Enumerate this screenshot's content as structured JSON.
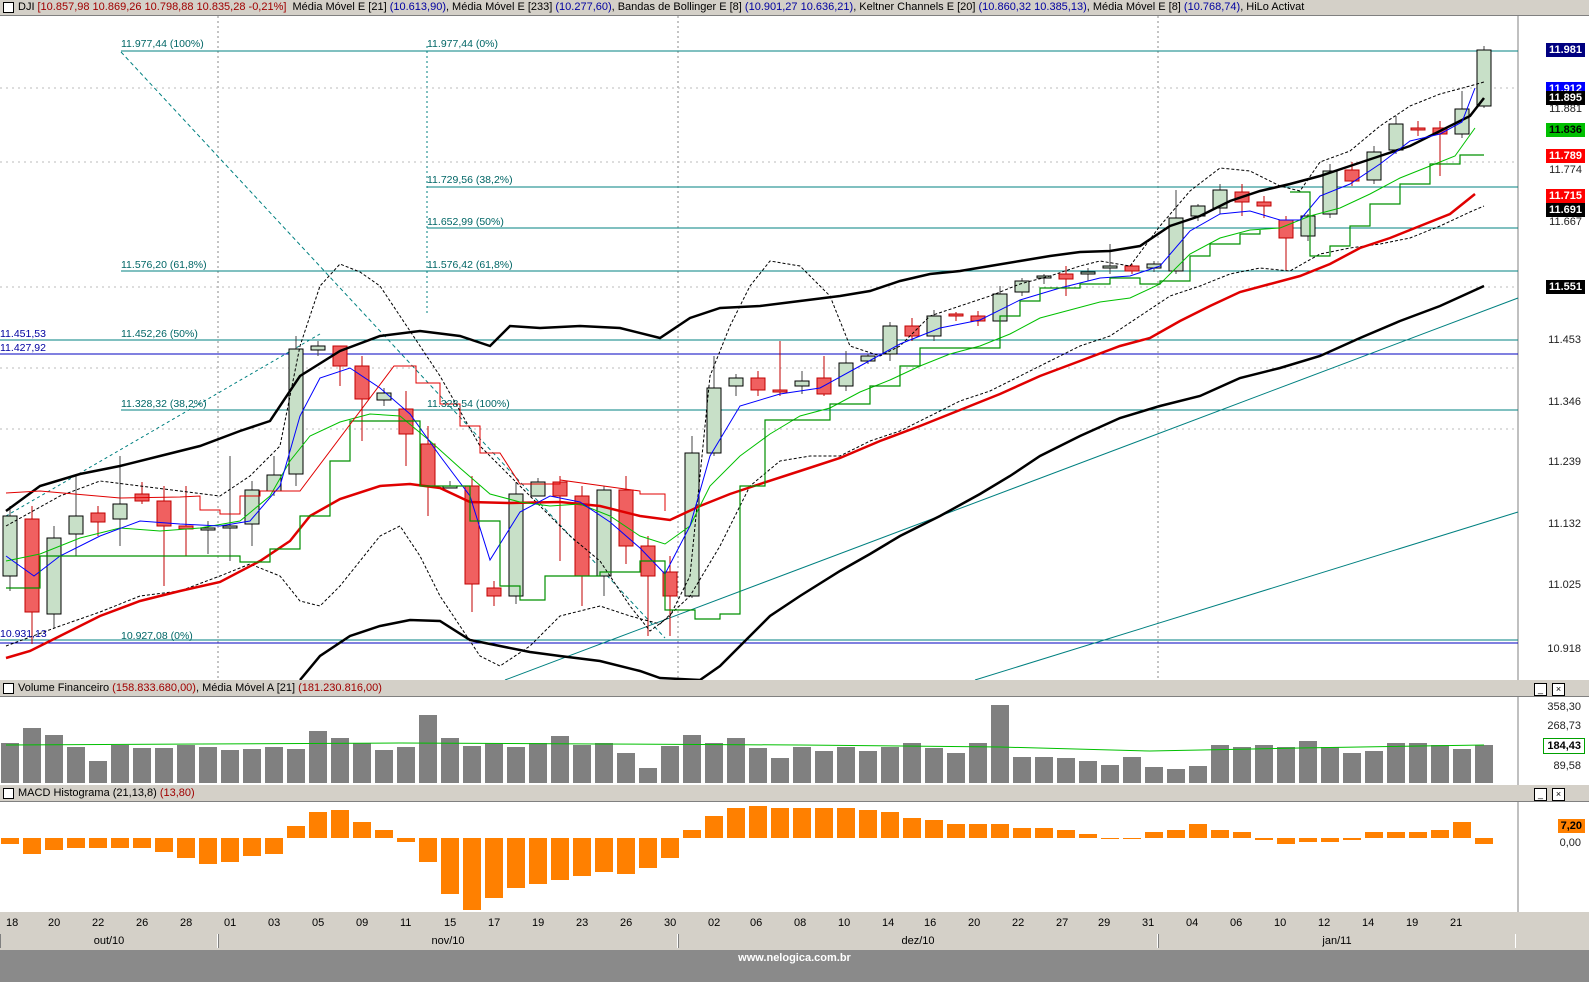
{
  "main": {
    "symbol": "DJI",
    "ohlc": "[10.857,98  10.869,26  10.798,88  10.835,28  -0,21%]",
    "indicators": [
      {
        "name": "Média Móvel E [21]",
        "value": "(10.613,90)"
      },
      {
        "name": "Média Móvel E [233]",
        "value": "(10.277,60)"
      },
      {
        "name": "Bandas de Bollinger E [8]",
        "value": "(10.901,27  10.636,21)"
      },
      {
        "name": "Keltner Channels E [20]",
        "value": "(10.860,32  10.385,13)"
      },
      {
        "name": "Média Móvel E [8]",
        "value": "(10.768,74)"
      },
      {
        "name": "HiLo Activat",
        "value": ""
      }
    ],
    "price_tags": [
      {
        "text": "11.981",
        "bg": "#000080",
        "fg": "#ffffff"
      },
      {
        "text": "11.912",
        "bg": "#0000ff",
        "fg": "#ffffff"
      },
      {
        "text": "11.895",
        "bg": "#000000",
        "fg": "#ffffff"
      },
      {
        "text": "11.881",
        "bg": "",
        "fg": "#222222"
      },
      {
        "text": "11.836",
        "bg": "#00c000",
        "fg": "#000000"
      },
      {
        "text": "11.789",
        "bg": "#ff0000",
        "fg": "#ffffff"
      },
      {
        "text": "11.774",
        "bg": "",
        "fg": "#222222"
      },
      {
        "text": "11.715",
        "bg": "#ff0000",
        "fg": "#ffffff"
      },
      {
        "text": "11.691",
        "bg": "#000000",
        "fg": "#ffffff"
      },
      {
        "text": "11.667",
        "bg": "",
        "fg": "#222222"
      },
      {
        "text": "11.551",
        "bg": "#000000",
        "fg": "#ffffff"
      }
    ],
    "axis_labels": [
      "11.453",
      "11.346",
      "11.239",
      "11.132",
      "11.025",
      "10.918"
    ],
    "fib_labels": [
      "11.977,44 (100%)",
      "11.977,44 (0%)",
      "11.729,56 (38,2%)",
      "11.652,99 (50%)",
      "11.576,20 (61,8%)",
      "11.576,42 (61,8%)",
      "11.451,53",
      "11.452,26 (50%)",
      "11.427,92",
      "11.328,32 (38,2%)",
      "11.328,54 (100%)",
      "10.931,13",
      "10.927,08 (0%)"
    ]
  },
  "volume": {
    "title": "Volume Financeiro",
    "value": "(158.833.680,00)",
    "ma_title": "Média Móvel A [21]",
    "ma_value": "(181.230.816,00)",
    "axis_labels": [
      "358,30",
      "268,73",
      "89,58"
    ],
    "tag": "184,43"
  },
  "macd": {
    "title": "MACD Histograma (21,13,8)",
    "value": "(13,80)",
    "tag": "7,20",
    "axis_labels": [
      "0,00"
    ]
  },
  "xaxis": {
    "days": [
      "18",
      "20",
      "22",
      "26",
      "28",
      "01",
      "03",
      "05",
      "09",
      "11",
      "15",
      "17",
      "19",
      "23",
      "26",
      "30",
      "02",
      "06",
      "08",
      "10",
      "14",
      "16",
      "20",
      "22",
      "27",
      "29",
      "31",
      "04",
      "06",
      "10",
      "12",
      "14",
      "19",
      "21"
    ],
    "months": [
      "out/10",
      "nov/10",
      "dez/10",
      "jan/11"
    ]
  },
  "footer": "www.nelogica.com.br",
  "colors": {
    "bull": "#c8e0c8",
    "bear": "#f06060",
    "ema21": "#e00000",
    "ema233": "#000000",
    "ema8": "#0000ff",
    "hilo": "#008000",
    "macd": "#ff8000",
    "volume": "#808080",
    "fib": "#006666"
  }
}
